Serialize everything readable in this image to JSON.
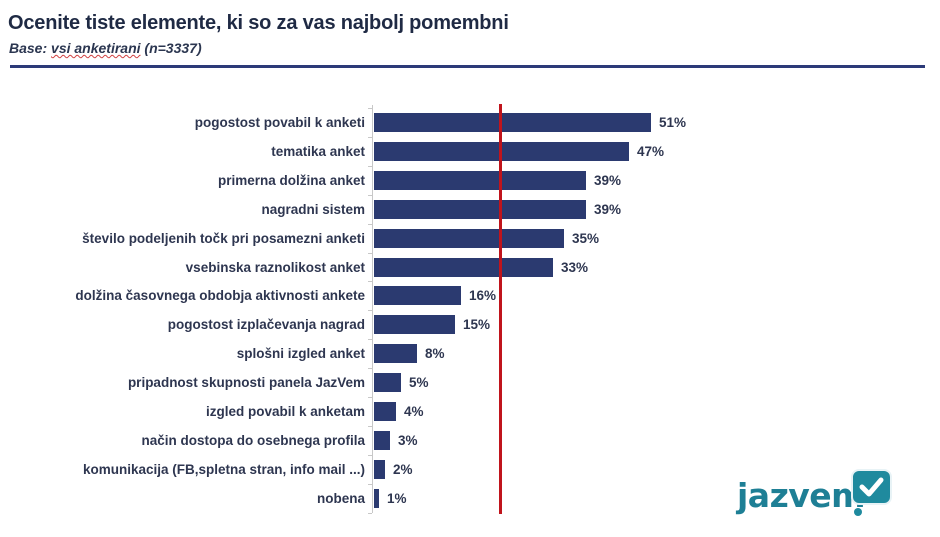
{
  "header": {
    "title": "Ocenite tiste elemente, ki so za vas najbolj pomembni",
    "subtitle_prefix": "Base: ",
    "subtitle_spell": "vsi anketirani",
    "subtitle_suffix": " (n=3337)"
  },
  "colors": {
    "bar": "#2b3a70",
    "reference_line": "#c0141c",
    "label_text": "#2e3650",
    "rule": "#2c3a78",
    "logo": "#1f8a9e"
  },
  "logo": {
    "text": "jazvem",
    "icon": "checkmark-speech-bubble-icon"
  },
  "chart_data": {
    "type": "bar",
    "orientation": "horizontal",
    "title": "Ocenite tiste elemente, ki so za vas najbolj pomembni",
    "subtitle": "Base: vsi anketirani (n=3337)",
    "xlabel": "",
    "ylabel": "",
    "value_suffix": "%",
    "grid": false,
    "legend": null,
    "xlim": [
      0,
      55
    ],
    "reference_line": {
      "approx_value": 23,
      "color": "#c0141c"
    },
    "categories": [
      "pogostost povabil k anketi",
      "tematika anket",
      "primerna dolžina anket",
      "nagradni sistem",
      "število podeljenih točk pri posamezni anketi",
      "vsebinska raznolikost anket",
      "dolžina časovnega obdobja aktivnosti ankete",
      "pogostost izplačevanja nagrad",
      "splošni izgled anket",
      "pripadnost skupnosti panela JazVem",
      "izgled povabil k anketam",
      "način dostopa do osebnega profila",
      "komunikacija (FB,spletna stran, info mail ...)",
      "nobena"
    ],
    "values": [
      51,
      47,
      39,
      39,
      35,
      33,
      16,
      15,
      8,
      5,
      4,
      3,
      2,
      1
    ],
    "labels": [
      "51%",
      "47%",
      "39%",
      "39%",
      "35%",
      "33%",
      "16%",
      "15%",
      "8%",
      "5%",
      "4%",
      "3%",
      "2%",
      "1%"
    ]
  }
}
